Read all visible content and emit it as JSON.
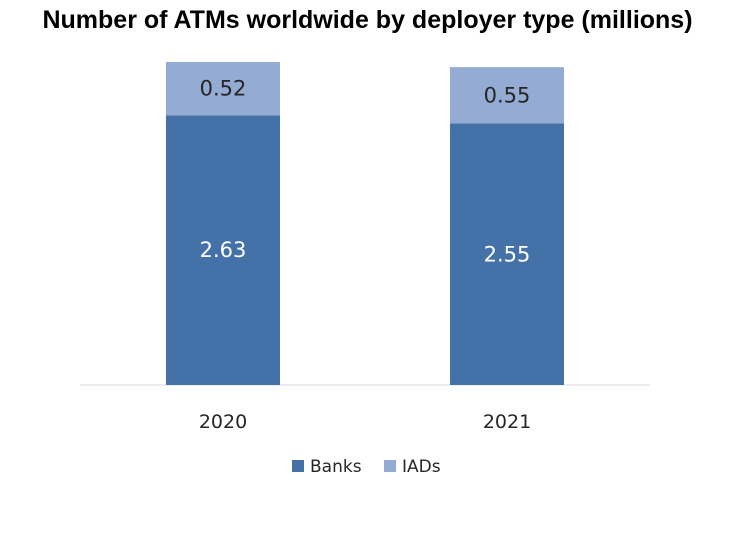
{
  "chart_data": {
    "type": "bar",
    "stacked": true,
    "title": "Number of ATMs worldwide by deployer type (millions)",
    "xlabel": "",
    "ylabel": "",
    "categories": [
      "2020",
      "2021"
    ],
    "series": [
      {
        "name": "Banks",
        "values": [
          2.63,
          2.55
        ],
        "color": "#4472a8",
        "label_color": "#ffffff"
      },
      {
        "name": "IADs",
        "values": [
          0.52,
          0.55
        ],
        "color": "#94abd3",
        "label_color": "#262626"
      }
    ],
    "ylim": [
      0,
      3.15
    ],
    "grid": false,
    "legend": "bottom"
  }
}
